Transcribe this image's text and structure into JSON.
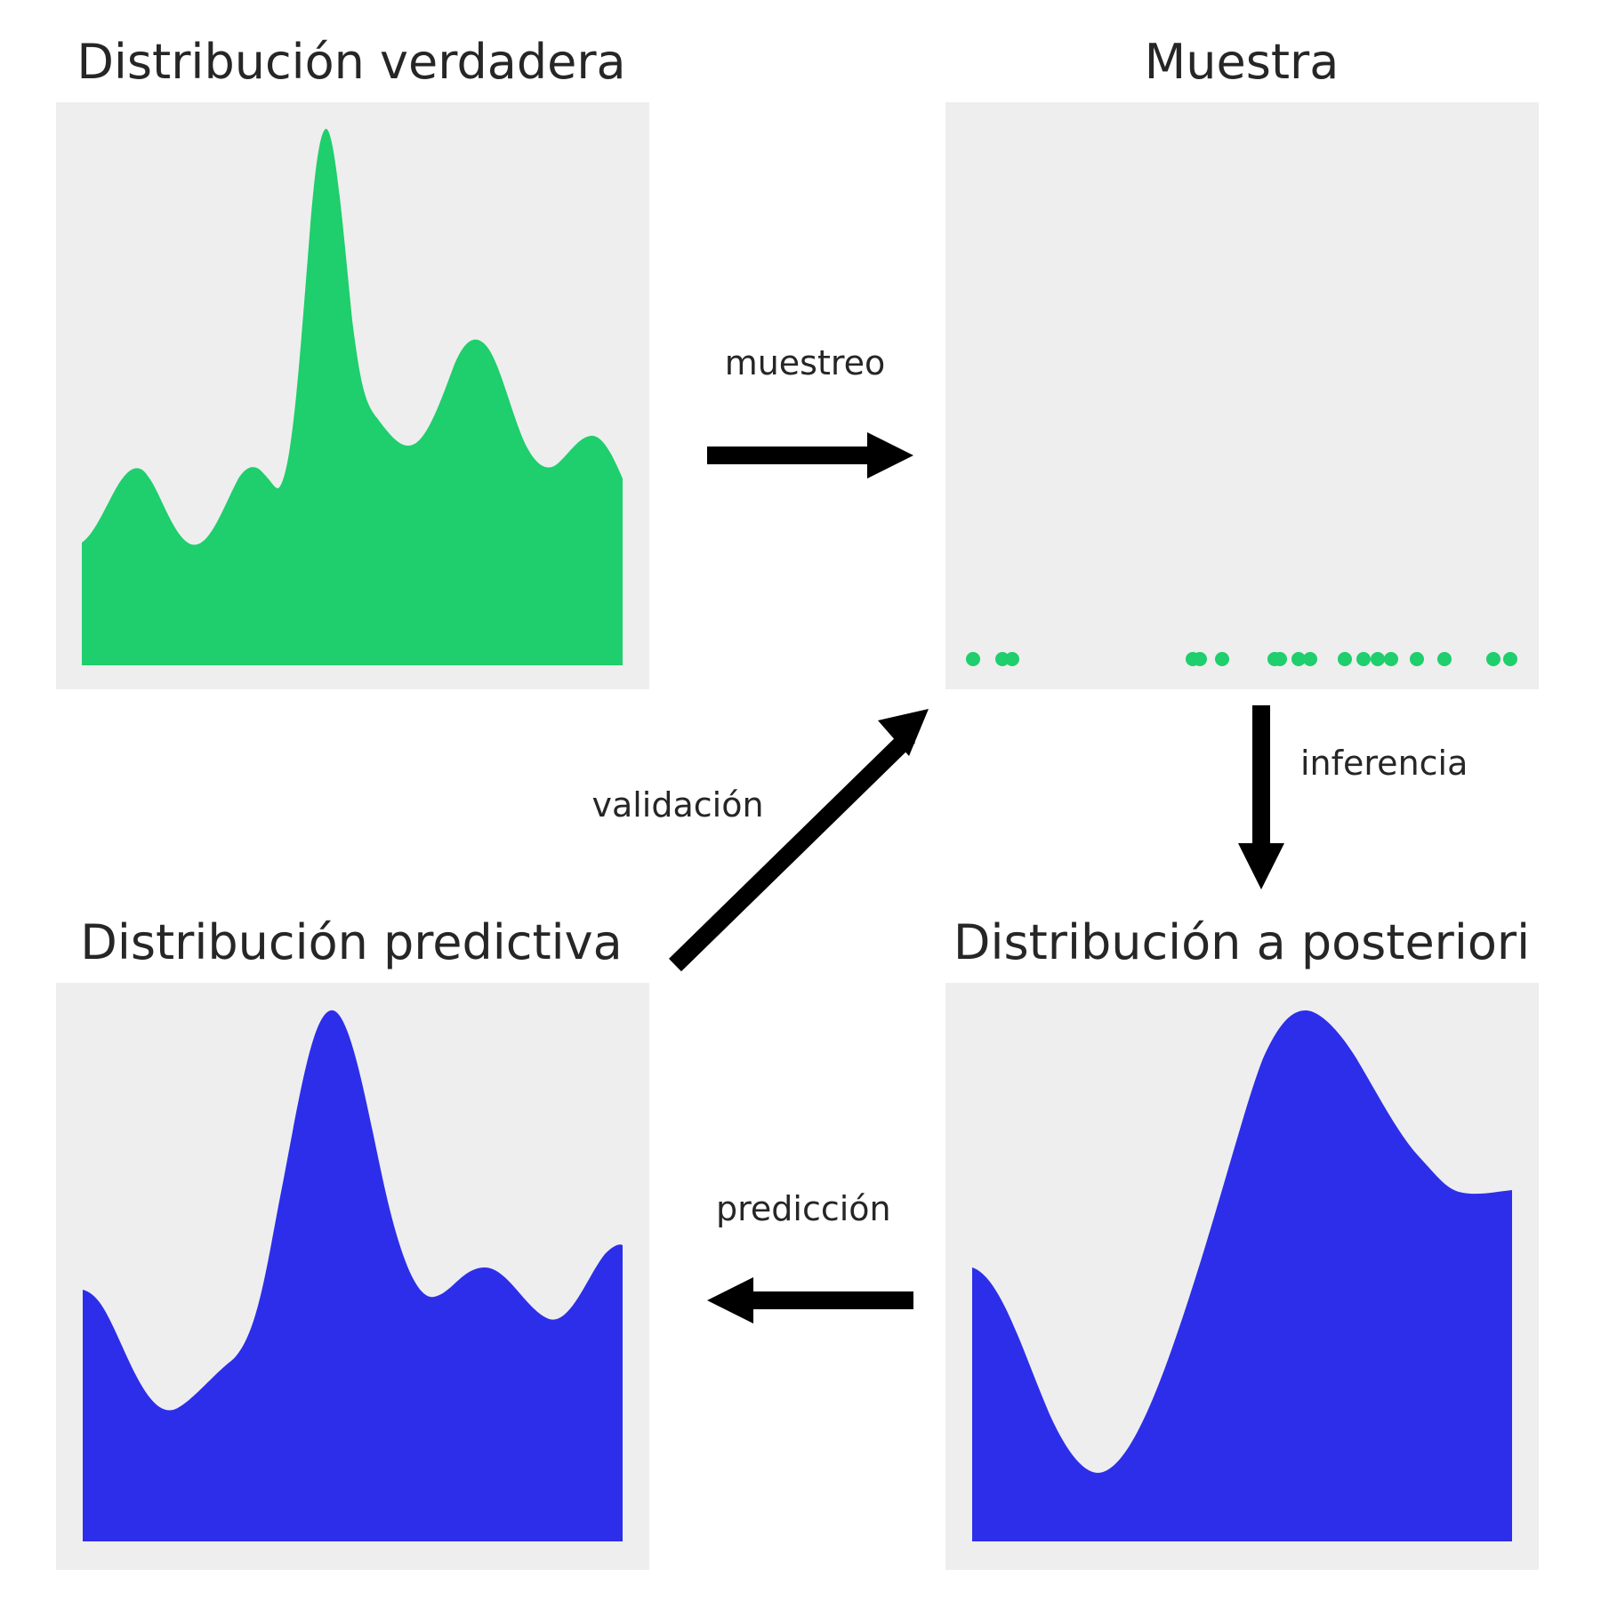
{
  "panels": {
    "true_dist": {
      "title": "Distribución verdadera"
    },
    "sample": {
      "title": "Muestra"
    },
    "predictive": {
      "title": "Distribución predictiva"
    },
    "posterior": {
      "title": "Distribución a posteriori"
    }
  },
  "arrows": {
    "sampling": "muestreo",
    "inference": "inferencia",
    "prediction": "predicción",
    "validation": "validación"
  },
  "colors": {
    "true_fill": "#1fce6c",
    "model_fill": "#2d2eea",
    "panel_bg": "#eeeeee",
    "arrow": "#000000",
    "text": "#262626"
  },
  "icons": {
    "sampling": "arrow-right-icon",
    "inference": "arrow-down-icon",
    "prediction": "arrow-left-icon",
    "validation": "arrow-up-right-icon"
  }
}
